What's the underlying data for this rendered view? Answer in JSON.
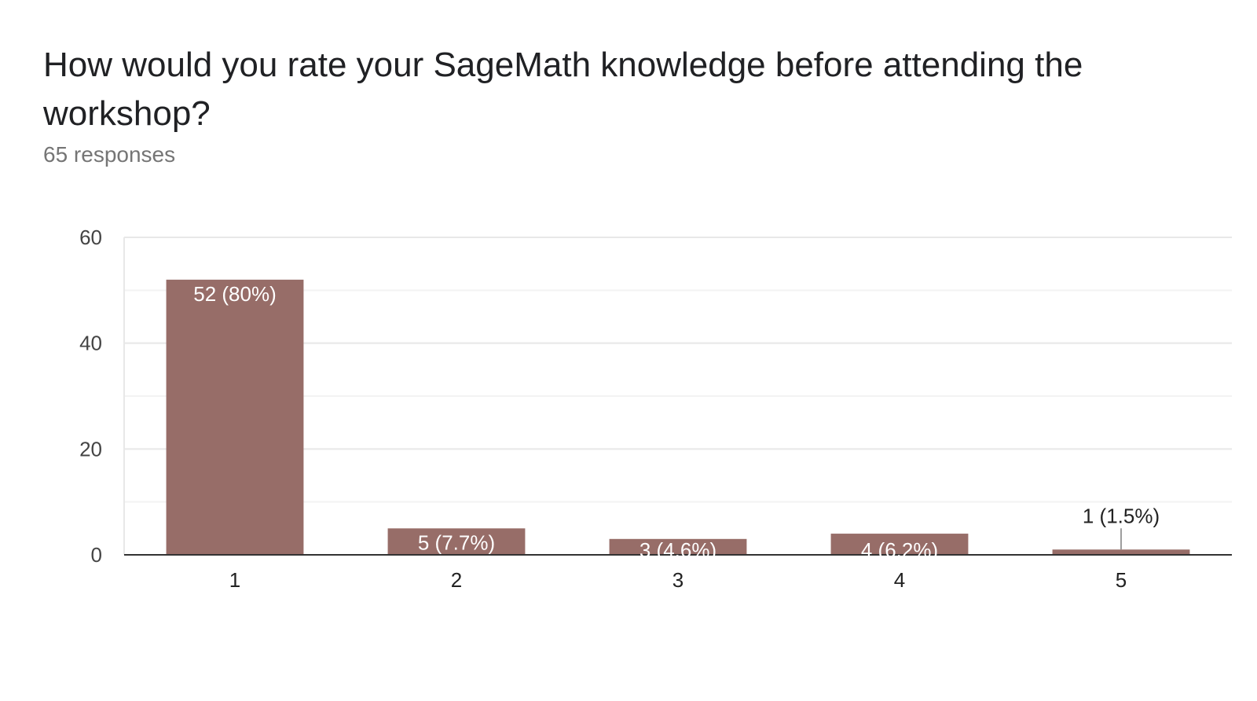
{
  "header": {
    "title": "How would you rate your SageMath knowledge before attending the workshop?",
    "responses": "65 responses"
  },
  "colors": {
    "bar": "#976d68",
    "gridline": "#e8e8e8",
    "minor_gridline": "#f3f3f3",
    "axis": "#333333",
    "label_inside": "#ffffff",
    "label_outside": "#222222",
    "leader": "#9e9e9e"
  },
  "chart_data": {
    "type": "bar",
    "categories": [
      "1",
      "2",
      "3",
      "4",
      "5"
    ],
    "values": [
      52,
      5,
      3,
      4,
      1
    ],
    "data_labels": [
      "52 (80%)",
      "5 (7.7%)",
      "3 (4.6%)",
      "4 (6.2%)",
      "1 (1.5%)"
    ],
    "y_ticks": [
      "0",
      "20",
      "40",
      "60"
    ],
    "ylim": [
      0,
      60
    ],
    "grid": true
  }
}
